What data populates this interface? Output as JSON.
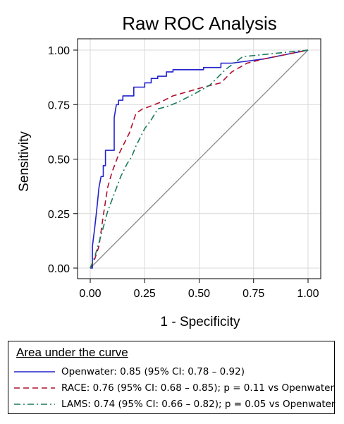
{
  "chart_data": {
    "type": "line",
    "title": "Raw ROC Analysis",
    "xlabel": "1 - Specificity",
    "ylabel": "Sensitivity",
    "xlim": [
      0,
      1
    ],
    "ylim": [
      0,
      1
    ],
    "xticks": [
      "0.00",
      "0.25",
      "0.50",
      "0.75",
      "1.00"
    ],
    "yticks": [
      "0.00",
      "0.25",
      "0.50",
      "0.75",
      "1.00"
    ],
    "grid": true,
    "legend_title": "Area under the curve",
    "legend_placement": "bottom",
    "reference_line": {
      "x": [
        0,
        1
      ],
      "y": [
        0,
        1
      ],
      "color": "#888888"
    },
    "series": [
      {
        "name": "Openwater: 0.85 (95% CI: 0.78 – 0.92)",
        "color": "#2222cc",
        "dash": "solid",
        "x": [
          0,
          0.01,
          0.01,
          0.02,
          0.03,
          0.04,
          0.05,
          0.06,
          0.06,
          0.07,
          0.07,
          0.11,
          0.11,
          0.12,
          0.13,
          0.13,
          0.14,
          0.15,
          0.15,
          0.16,
          0.2,
          0.2,
          0.25,
          0.25,
          0.28,
          0.28,
          0.31,
          0.31,
          0.35,
          0.35,
          0.38,
          0.38,
          0.52,
          0.52,
          0.6,
          0.6,
          0.65,
          0.8,
          1.0
        ],
        "y": [
          0,
          0,
          0.1,
          0.18,
          0.27,
          0.37,
          0.42,
          0.42,
          0.47,
          0.47,
          0.54,
          0.54,
          0.69,
          0.75,
          0.75,
          0.77,
          0.77,
          0.77,
          0.79,
          0.79,
          0.79,
          0.83,
          0.83,
          0.85,
          0.85,
          0.87,
          0.87,
          0.88,
          0.88,
          0.9,
          0.9,
          0.91,
          0.91,
          0.92,
          0.92,
          0.94,
          0.94,
          0.96,
          1.0
        ]
      },
      {
        "name": "RACE: 0.76 (95% CI: 0.68 – 0.85); p = 0.11 vs Openwater",
        "color": "#b01030",
        "dash": "dashed",
        "x": [
          0,
          0.02,
          0.04,
          0.06,
          0.08,
          0.1,
          0.13,
          0.15,
          0.18,
          0.21,
          0.24,
          0.27,
          0.32,
          0.38,
          0.45,
          0.52,
          0.6,
          0.65,
          0.72,
          0.8,
          0.9,
          1.0
        ],
        "y": [
          0,
          0.04,
          0.1,
          0.24,
          0.37,
          0.44,
          0.52,
          0.56,
          0.62,
          0.71,
          0.73,
          0.74,
          0.76,
          0.79,
          0.81,
          0.83,
          0.85,
          0.9,
          0.94,
          0.96,
          0.98,
          1.0
        ]
      },
      {
        "name": "LAMS: 0.74 (95% CI: 0.66 – 0.82); p = 0.05 vs Openwater",
        "color": "#1a7a5e",
        "dash": "dashdot",
        "x": [
          0,
          0.02,
          0.05,
          0.08,
          0.11,
          0.14,
          0.17,
          0.19,
          0.21,
          0.25,
          0.28,
          0.31,
          0.35,
          0.4,
          0.48,
          0.55,
          0.62,
          0.7,
          0.8,
          1.0
        ],
        "y": [
          0,
          0.05,
          0.15,
          0.26,
          0.34,
          0.42,
          0.48,
          0.51,
          0.56,
          0.64,
          0.68,
          0.73,
          0.74,
          0.76,
          0.8,
          0.84,
          0.91,
          0.97,
          0.98,
          1.0
        ]
      }
    ]
  }
}
